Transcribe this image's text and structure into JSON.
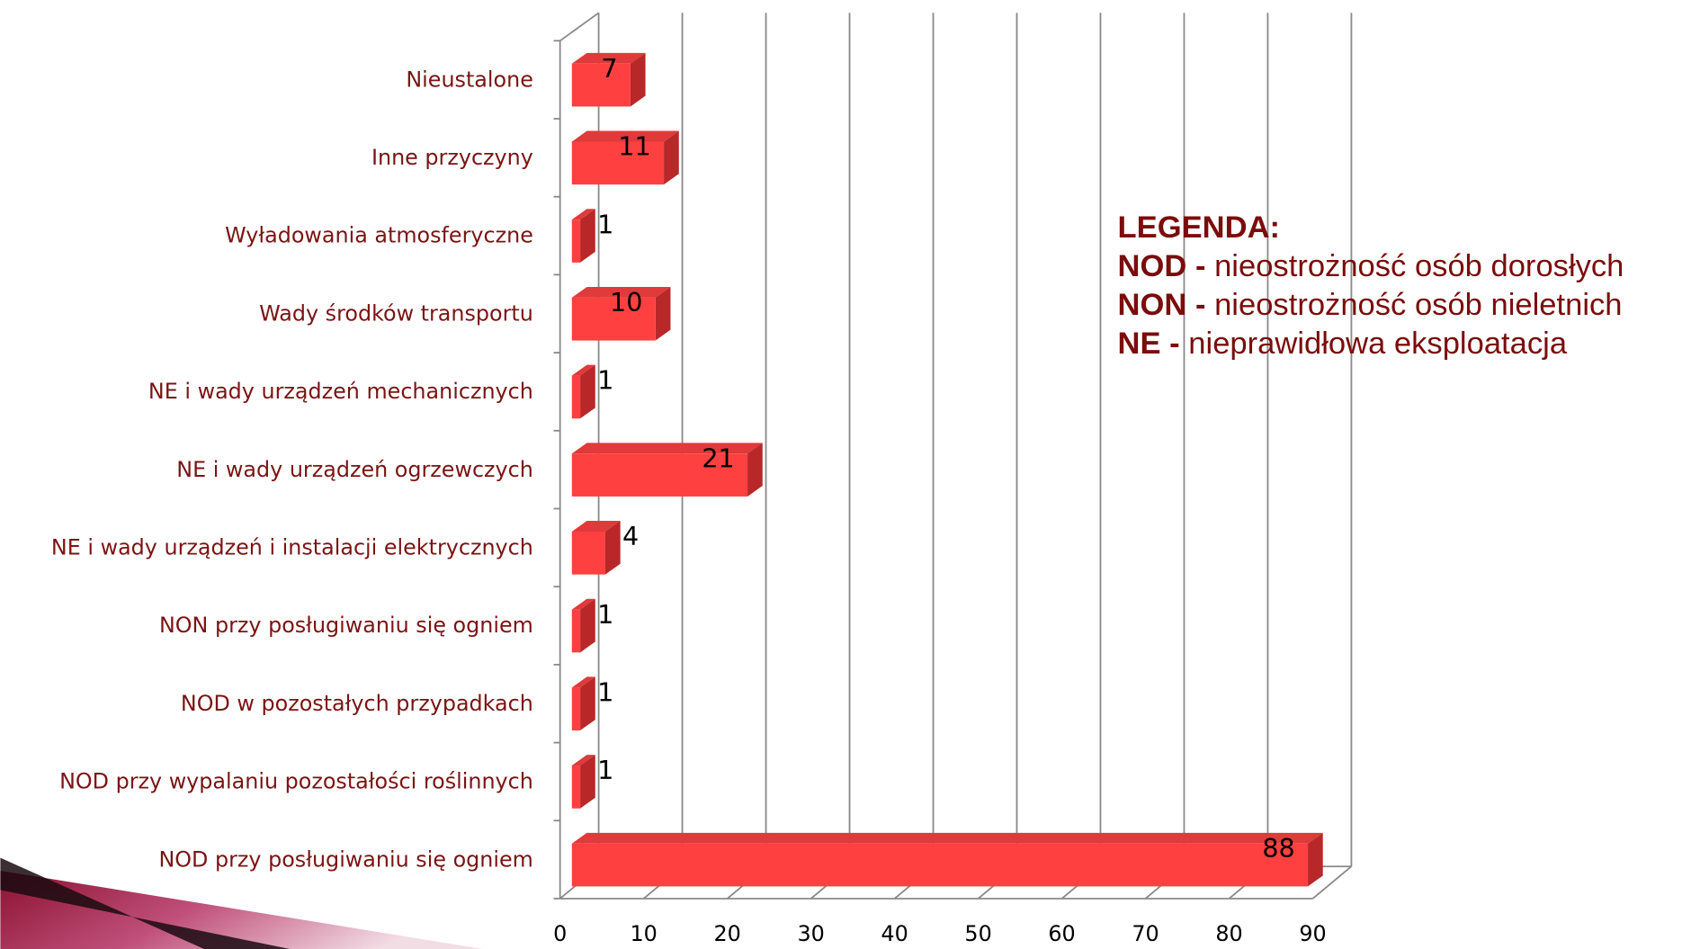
{
  "chart_data": {
    "type": "bar",
    "orientation": "horizontal",
    "color": "#ff4040",
    "categories": [
      "Nieustalone",
      "Inne przyczyny",
      "Wyładowania atmosferyczne",
      "Wady środków transportu",
      "NE i wady urządzeń mechanicznych",
      "NE i wady urządzeń ogrzewczych",
      "NE i wady urządzeń i instalacji elektrycznych",
      "NON przy posługiwaniu się ogniem",
      "NOD w pozostałych przypadkach",
      "NOD przy wypalaniu pozostałości roślinnych",
      "NOD przy posługiwaniu się ogniem"
    ],
    "values": [
      7,
      11,
      1,
      10,
      1,
      21,
      4,
      1,
      1,
      1,
      88
    ],
    "xlim": [
      0,
      90
    ],
    "xticks": [
      0,
      10,
      20,
      30,
      40,
      50,
      60,
      70,
      80,
      90
    ],
    "grid": true,
    "legend_title": "LEGENDA:",
    "legend_items": [
      {
        "abbr": "NOD -",
        "text": "nieostrożność osób dorosłych"
      },
      {
        "abbr": "NON -",
        "text": "nieostrożność osób nieletnich"
      },
      {
        "abbr": "NE -",
        "text": "nieprawidłowa eksploatacja"
      }
    ]
  }
}
